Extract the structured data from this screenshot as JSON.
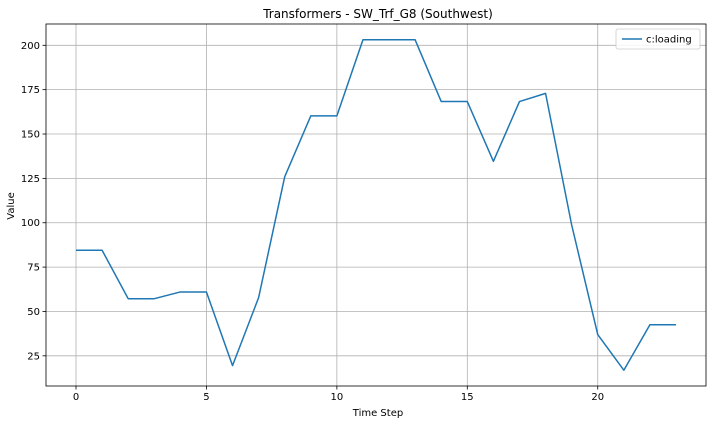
{
  "chart_data": {
    "type": "line",
    "title": "Transformers - SW_Trf_G8 (Southwest)",
    "xlabel": "Time Step",
    "ylabel": "Value",
    "xlim": [
      -1.15,
      24.15
    ],
    "ylim": [
      8,
      212
    ],
    "xticks": [
      0,
      5,
      10,
      15,
      20
    ],
    "yticks": [
      25,
      50,
      75,
      100,
      125,
      150,
      175,
      200
    ],
    "grid": true,
    "legend_position": "top-right",
    "x": [
      0,
      1,
      2,
      3,
      4,
      5,
      6,
      7,
      8,
      9,
      10,
      11,
      12,
      13,
      14,
      15,
      16,
      17,
      18,
      19,
      20,
      21,
      22,
      23
    ],
    "series": [
      {
        "name": "c:loading",
        "color": "#1f77b4",
        "values": [
          84.5,
          84.5,
          57.2,
          57.2,
          61.0,
          61.0,
          19.5,
          57.8,
          125.9,
          160.2,
          160.2,
          203.1,
          203.1,
          203.1,
          168.3,
          168.3,
          134.6,
          168.3,
          172.9,
          98.8,
          37.0,
          16.9,
          42.5,
          42.5
        ]
      }
    ]
  }
}
